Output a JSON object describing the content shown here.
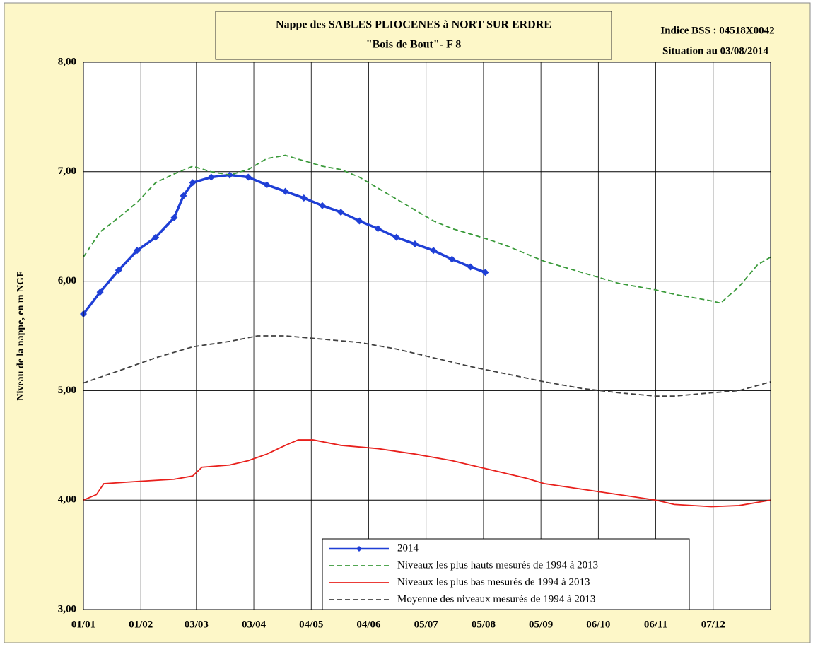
{
  "chart_data": {
    "type": "line",
    "title": "Nappe des SABLES PLIOCENES à NORT SUR ERDRE",
    "subtitle": "\"Bois de Bout\"-  F 8",
    "annotations": [
      "Indice BSS : 04518X0042",
      "Situation au 03/08/2014"
    ],
    "y_label": "Niveau de la nappe, en m NGF",
    "xlim": [
      1,
      372
    ],
    "xticks": [
      {
        "value": 1,
        "label": "01/01"
      },
      {
        "value": 32,
        "label": "01/02"
      },
      {
        "value": 62,
        "label": "03/03"
      },
      {
        "value": 93,
        "label": "03/04"
      },
      {
        "value": 124,
        "label": "04/05"
      },
      {
        "value": 155,
        "label": "04/06"
      },
      {
        "value": 186,
        "label": "05/07"
      },
      {
        "value": 217,
        "label": "05/08"
      },
      {
        "value": 248,
        "label": "05/09"
      },
      {
        "value": 279,
        "label": "06/10"
      },
      {
        "value": 310,
        "label": "06/11"
      },
      {
        "value": 341,
        "label": "07/12"
      }
    ],
    "ylim": [
      3,
      8
    ],
    "yticks": [
      {
        "value": 3,
        "label": "3,00"
      },
      {
        "value": 4,
        "label": "4,00"
      },
      {
        "value": 5,
        "label": "5,00"
      },
      {
        "value": 6,
        "label": "6,00"
      },
      {
        "value": 7,
        "label": "7,00"
      },
      {
        "value": 8,
        "label": "8,00"
      }
    ],
    "grid": true,
    "series": [
      {
        "name": "2014",
        "color": "#1f3fd6",
        "style": "solid-markers",
        "x": [
          1,
          10,
          20,
          30,
          40,
          50,
          55,
          60,
          70,
          80,
          90,
          100,
          110,
          120,
          130,
          140,
          150,
          160,
          170,
          180,
          190,
          200,
          210,
          218
        ],
        "values": [
          5.7,
          5.9,
          6.1,
          6.28,
          6.4,
          6.58,
          6.78,
          6.9,
          6.95,
          6.97,
          6.95,
          6.88,
          6.82,
          6.76,
          6.69,
          6.63,
          6.55,
          6.48,
          6.4,
          6.34,
          6.28,
          6.2,
          6.13,
          6.08
        ]
      },
      {
        "name": "Niveaux les plus hauts mesurés de 1994 à 2013",
        "color": "#3a9a3a",
        "style": "dashed",
        "x": [
          1,
          10,
          20,
          30,
          40,
          50,
          60,
          70,
          80,
          90,
          100,
          110,
          120,
          130,
          140,
          150,
          160,
          170,
          180,
          190,
          200,
          210,
          220,
          230,
          240,
          250,
          260,
          270,
          280,
          290,
          300,
          310,
          320,
          330,
          340,
          345,
          355,
          365,
          372
        ],
        "values": [
          6.22,
          6.45,
          6.58,
          6.72,
          6.9,
          6.98,
          7.05,
          7.0,
          6.97,
          7.02,
          7.12,
          7.15,
          7.1,
          7.05,
          7.02,
          6.95,
          6.85,
          6.75,
          6.65,
          6.55,
          6.48,
          6.43,
          6.38,
          6.32,
          6.25,
          6.18,
          6.13,
          6.08,
          6.03,
          5.98,
          5.95,
          5.92,
          5.88,
          5.85,
          5.82,
          5.8,
          5.95,
          6.15,
          6.22
        ]
      },
      {
        "name": "Niveaux les plus bas mesurés de 1994 à 2013",
        "color": "#e8201c",
        "style": "solid",
        "x": [
          1,
          8,
          12,
          30,
          50,
          60,
          65,
          80,
          90,
          100,
          110,
          117,
          125,
          140,
          160,
          180,
          200,
          220,
          240,
          250,
          270,
          290,
          310,
          320,
          340,
          355,
          372
        ],
        "values": [
          4.0,
          4.05,
          4.15,
          4.17,
          4.19,
          4.22,
          4.3,
          4.32,
          4.36,
          4.42,
          4.5,
          4.55,
          4.55,
          4.5,
          4.47,
          4.42,
          4.36,
          4.28,
          4.2,
          4.15,
          4.1,
          4.05,
          4.0,
          3.96,
          3.94,
          3.95,
          4.0
        ]
      },
      {
        "name": "Moyenne des niveaux mesurés de 1994 à 2013",
        "color": "#404040",
        "style": "dashed",
        "x": [
          1,
          20,
          40,
          60,
          80,
          95,
          110,
          130,
          150,
          170,
          190,
          210,
          230,
          250,
          270,
          290,
          310,
          320,
          340,
          355,
          372
        ],
        "values": [
          5.07,
          5.18,
          5.3,
          5.4,
          5.45,
          5.5,
          5.5,
          5.47,
          5.44,
          5.38,
          5.3,
          5.22,
          5.15,
          5.08,
          5.02,
          4.98,
          4.95,
          4.95,
          4.98,
          5.0,
          5.08
        ]
      }
    ]
  }
}
